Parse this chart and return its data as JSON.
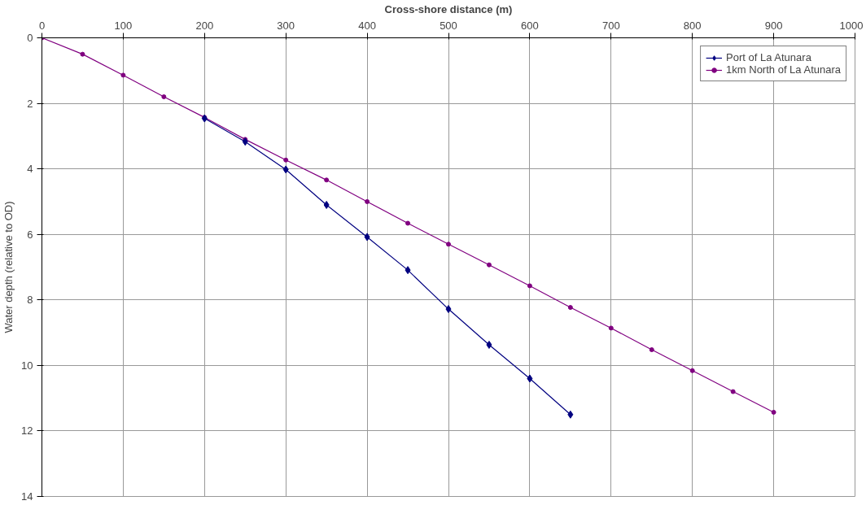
{
  "chart_data": {
    "type": "line",
    "xlabel": "Cross-shore distance (m)",
    "ylabel": "Water depth (relative to OD)",
    "xlim": [
      0,
      1000
    ],
    "xticks": [
      0,
      100,
      200,
      300,
      400,
      500,
      600,
      700,
      800,
      900,
      1000
    ],
    "ylim": [
      14,
      0
    ],
    "yticks": [
      0,
      2,
      4,
      6,
      8,
      10,
      12,
      14
    ],
    "grid": true,
    "legend": "top right",
    "series": [
      {
        "name": "Port of La Atunara",
        "color": "#000080",
        "marker": "diamond",
        "x": [
          200,
          250,
          300,
          350,
          400,
          450,
          500,
          550,
          600,
          650
        ],
        "values": [
          2.46,
          3.17,
          4.02,
          5.1,
          6.08,
          7.09,
          8.28,
          9.37,
          10.4,
          11.5
        ]
      },
      {
        "name": "1km North of La Atunara",
        "color": "#800080",
        "marker": "circle",
        "x": [
          0,
          50,
          100,
          150,
          200,
          250,
          300,
          350,
          400,
          450,
          500,
          550,
          600,
          650,
          700,
          750,
          800,
          850,
          900
        ],
        "values": [
          0,
          0.5,
          1.14,
          1.8,
          2.43,
          3.1,
          3.73,
          4.34,
          5.0,
          5.66,
          6.3,
          6.93,
          7.57,
          8.23,
          8.86,
          9.52,
          10.16,
          10.8,
          11.43
        ]
      }
    ]
  }
}
